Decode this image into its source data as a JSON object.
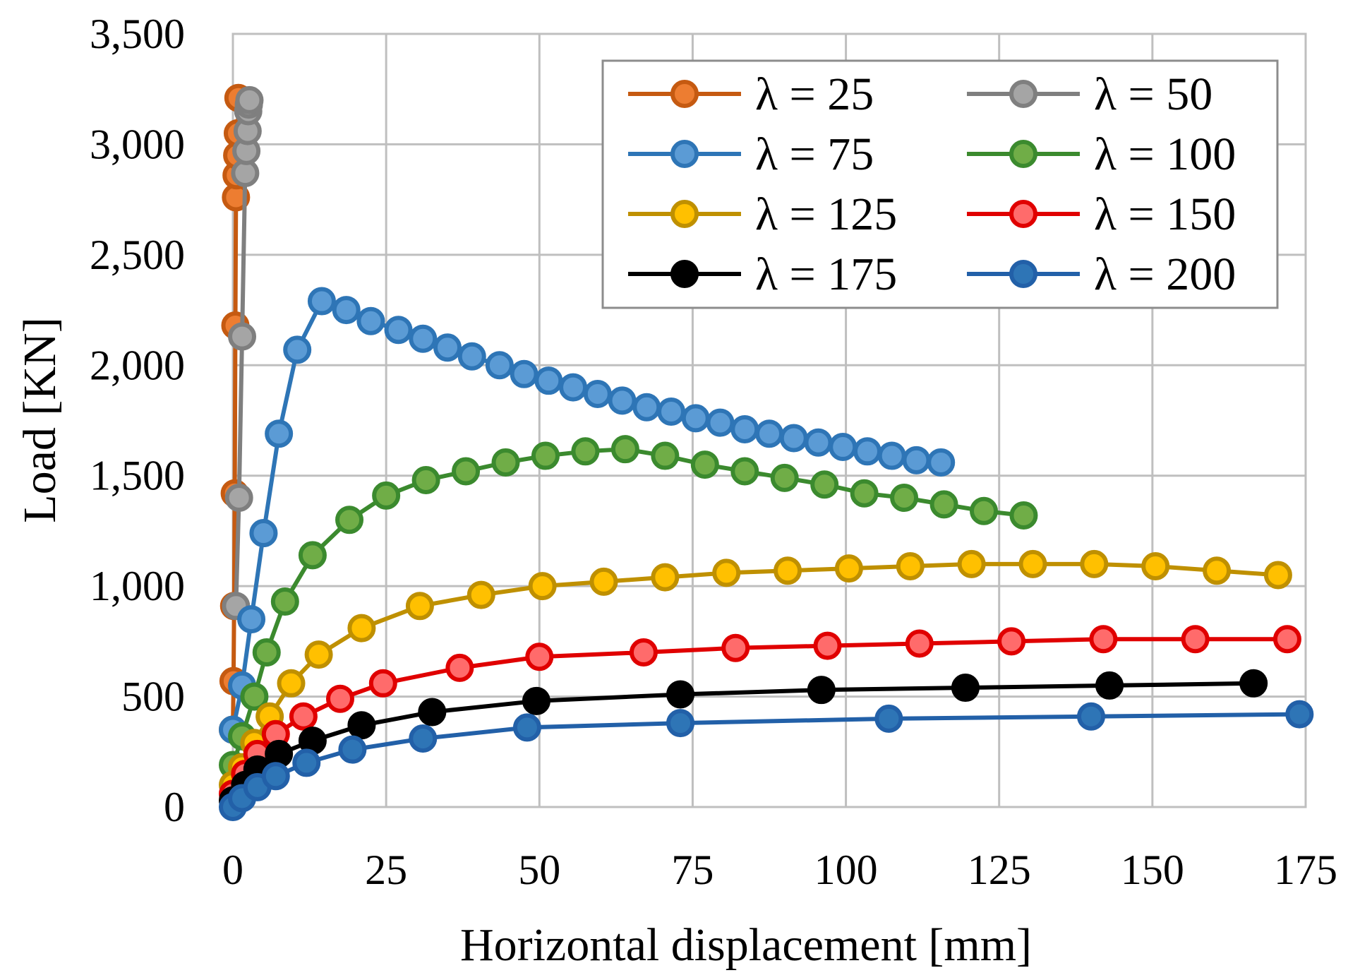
{
  "chart_data": {
    "type": "line",
    "title": "",
    "xlabel": "Horizontal displacement [mm]",
    "ylabel": "Load [KN]",
    "xlim": [
      0,
      175
    ],
    "ylim": [
      0,
      3500
    ],
    "x_ticks": [
      0,
      25,
      50,
      75,
      100,
      125,
      150,
      175
    ],
    "x_tick_labels": [
      "0",
      "25",
      "50",
      "75",
      "100",
      "125",
      "150",
      "175"
    ],
    "y_ticks": [
      0,
      500,
      1000,
      1500,
      2000,
      2500,
      3000,
      3500
    ],
    "y_tick_labels": [
      "0",
      "500",
      "1,000",
      "1,500",
      "2,000",
      "2,500",
      "3,000",
      "3,500"
    ],
    "grid": true,
    "legend_position": "top-right",
    "series": [
      {
        "name": "λ = 25",
        "color": "#C55A11",
        "marker_fill": "#ED7D31",
        "x": [
          0,
          0.1,
          0.2,
          0.3,
          0.4,
          0.5,
          0.6,
          0.7,
          0.8,
          0.9
        ],
        "y": [
          350,
          570,
          910,
          1420,
          2180,
          2760,
          2860,
          2950,
          3050,
          3210
        ]
      },
      {
        "name": "λ = 50",
        "color": "#7F7F7F",
        "marker_fill": "#A5A5A5",
        "x": [
          0.5,
          1.0,
          1.5,
          2.0,
          2.2,
          2.4,
          2.5,
          2.6,
          2.7
        ],
        "y": [
          910,
          1400,
          2130,
          2870,
          2970,
          3060,
          3150,
          3180,
          3200
        ]
      },
      {
        "name": "λ = 75",
        "color": "#2E75B6",
        "marker_fill": "#5B9BD5",
        "x": [
          0,
          1.5,
          3,
          5,
          7.5,
          10.5,
          14.5,
          18.5,
          22.5,
          27,
          31,
          35,
          39,
          43.5,
          47.5,
          51.5,
          55.5,
          59.5,
          63.5,
          67.5,
          71.5,
          75.5,
          79.5,
          83.5,
          87.5,
          91.5,
          95.5,
          99.5,
          103.5,
          107.5,
          111.5,
          115.5
        ],
        "y": [
          350,
          550,
          850,
          1240,
          1690,
          2070,
          2290,
          2250,
          2200,
          2160,
          2120,
          2080,
          2040,
          2000,
          1960,
          1930,
          1900,
          1870,
          1840,
          1810,
          1790,
          1760,
          1740,
          1710,
          1690,
          1670,
          1650,
          1630,
          1610,
          1590,
          1570,
          1560
        ]
      },
      {
        "name": "λ = 100",
        "color": "#3B8A2E",
        "marker_fill": "#70AD47",
        "x": [
          0,
          1.5,
          3.5,
          5.5,
          8.5,
          13,
          19,
          25,
          31.5,
          38,
          44.5,
          51,
          57.5,
          64,
          70.5,
          77,
          83.5,
          90,
          96.5,
          103,
          109.5,
          116,
          122.5,
          129
        ],
        "y": [
          190,
          320,
          500,
          700,
          930,
          1140,
          1300,
          1410,
          1480,
          1520,
          1560,
          1590,
          1610,
          1620,
          1590,
          1550,
          1520,
          1490,
          1460,
          1420,
          1400,
          1370,
          1340,
          1320
        ]
      },
      {
        "name": "λ = 125",
        "color": "#BF9000",
        "marker_fill": "#FFC000",
        "x": [
          0,
          1.5,
          3.5,
          6,
          9.5,
          14,
          21,
          30.5,
          40.5,
          50.5,
          60.5,
          70.5,
          80.5,
          90.5,
          100.5,
          110.5,
          120.5,
          130.5,
          140.5,
          150.5,
          160.5,
          170.5
        ],
        "y": [
          100,
          180,
          290,
          410,
          560,
          690,
          810,
          910,
          960,
          1000,
          1020,
          1040,
          1060,
          1070,
          1080,
          1090,
          1100,
          1100,
          1100,
          1090,
          1070,
          1050
        ]
      },
      {
        "name": "λ = 150",
        "color": "#E00000",
        "marker_fill": "#FF6B6B",
        "x": [
          0,
          2,
          4,
          7,
          11.5,
          17.5,
          24.5,
          37,
          50,
          67,
          82,
          97,
          112,
          127,
          142,
          157,
          172
        ],
        "y": [
          60,
          150,
          240,
          330,
          410,
          490,
          560,
          630,
          680,
          700,
          720,
          730,
          740,
          750,
          760,
          760,
          760
        ]
      },
      {
        "name": "λ = 175",
        "color": "#000000",
        "marker_fill": "#000000",
        "x": [
          0,
          2,
          4,
          7.5,
          13,
          21,
          32.5,
          49.5,
          73,
          96,
          119.5,
          143,
          166.5
        ],
        "y": [
          30,
          100,
          170,
          240,
          300,
          370,
          430,
          480,
          510,
          530,
          540,
          550,
          560
        ]
      },
      {
        "name": "λ = 200",
        "color": "#2260A8",
        "marker_fill": "#2E75B6",
        "x": [
          0,
          1.5,
          4,
          7,
          12,
          19.5,
          31,
          48,
          73,
          107,
          140,
          174
        ],
        "y": [
          0,
          40,
          90,
          140,
          200,
          260,
          310,
          360,
          380,
          400,
          410,
          420
        ]
      }
    ]
  }
}
